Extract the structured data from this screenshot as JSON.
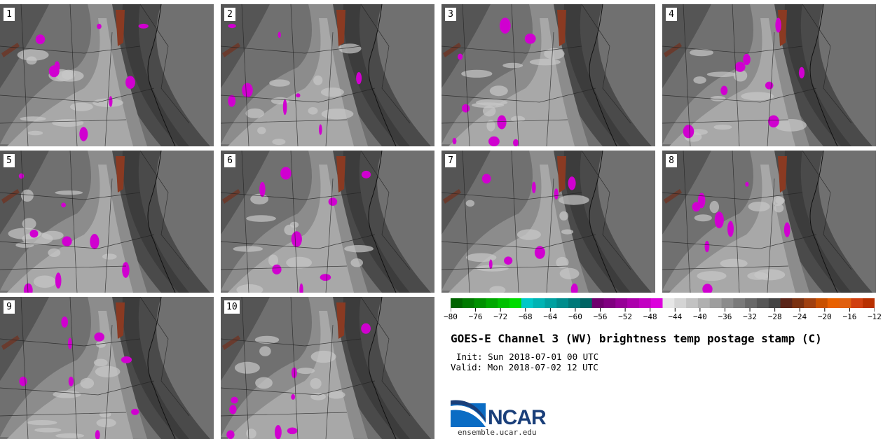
{
  "panels": [
    {
      "label": "1"
    },
    {
      "label": "2"
    },
    {
      "label": "3"
    },
    {
      "label": "4"
    },
    {
      "label": "5"
    },
    {
      "label": "6"
    },
    {
      "label": "7"
    },
    {
      "label": "8"
    },
    {
      "label": "9"
    },
    {
      "label": "10"
    }
  ],
  "colorbar": {
    "ticks": [
      "−80",
      "−76",
      "−72",
      "−68",
      "−64",
      "−60",
      "−56",
      "−52",
      "−48",
      "−44",
      "−40",
      "−36",
      "−32",
      "−28",
      "−24",
      "−20",
      "−16",
      "−12"
    ],
    "colors": [
      "#006400",
      "#007a00",
      "#009000",
      "#00a800",
      "#00c000",
      "#00dc00",
      "#00c8c8",
      "#00b4b4",
      "#00a0a0",
      "#008c8c",
      "#007878",
      "#006464",
      "#6e006e",
      "#800080",
      "#960096",
      "#ac00ac",
      "#c200c2",
      "#dc00dc",
      "#e6e6e6",
      "#d4d4d4",
      "#c2c2c2",
      "#b0b0b0",
      "#9e9e9e",
      "#8c8c8c",
      "#7a7a7a",
      "#686868",
      "#565656",
      "#444444",
      "#5a2418",
      "#7a3010",
      "#a04010",
      "#c85000",
      "#e86000",
      "#e06010",
      "#d04010",
      "#b83000"
    ]
  },
  "title": "GOES-E Channel 3 (WV) brightness temp postage stamp (C)",
  "init_line": "Init: Sun 2018-07-01 00 UTC",
  "valid_line": "Valid: Mon 2018-07-02 12 UTC",
  "logo": {
    "name": "NCAR",
    "url": "ensemble.ucar.edu"
  }
}
